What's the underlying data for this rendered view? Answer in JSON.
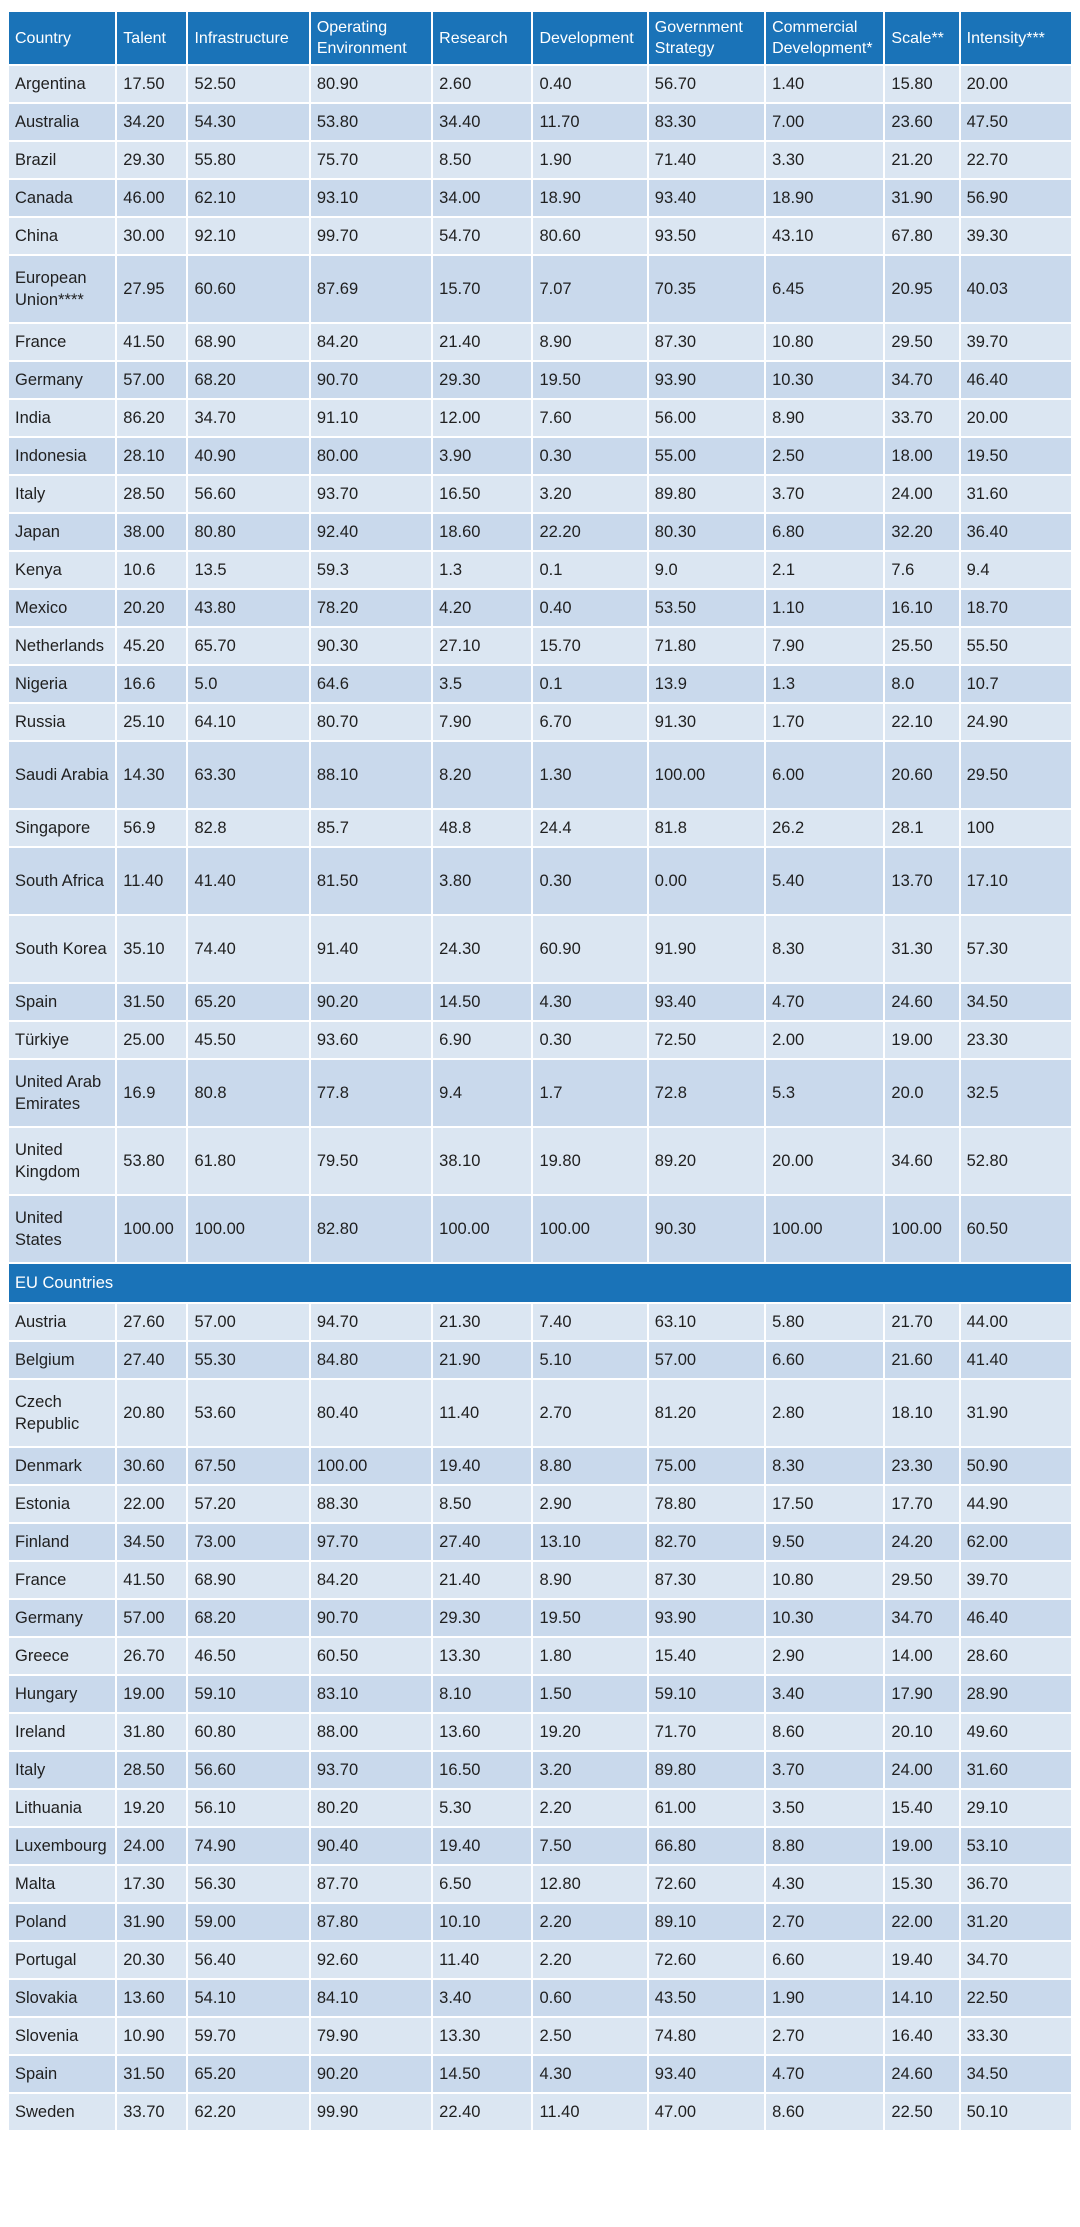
{
  "columns": [
    "Country",
    "Talent",
    "Infrastructure",
    "Operating Environment",
    "Research",
    "Development",
    "Government Strategy",
    "Commercial Development*",
    "Scale**",
    "Intensity***"
  ],
  "countries": [
    {
      "name": "Argentina",
      "values": [
        "17.50",
        "52.50",
        "80.90",
        "2.60",
        "0.40",
        "56.70",
        "1.40",
        "15.80",
        "20.00"
      ]
    },
    {
      "name": "Australia",
      "values": [
        "34.20",
        "54.30",
        "53.80",
        "34.40",
        "11.70",
        "83.30",
        "7.00",
        "23.60",
        "47.50"
      ]
    },
    {
      "name": "Brazil",
      "values": [
        "29.30",
        "55.80",
        "75.70",
        "8.50",
        "1.90",
        "71.40",
        "3.30",
        "21.20",
        "22.70"
      ]
    },
    {
      "name": "Canada",
      "values": [
        "46.00",
        "62.10",
        "93.10",
        "34.00",
        "18.90",
        "93.40",
        "18.90",
        "31.90",
        "56.90"
      ]
    },
    {
      "name": "China",
      "values": [
        "30.00",
        "92.10",
        "99.70",
        "54.70",
        "80.60",
        "93.50",
        "43.10",
        "67.80",
        "39.30"
      ]
    },
    {
      "name": "European Union****",
      "values": [
        "27.95",
        "60.60",
        "87.69",
        "15.70",
        "7.07",
        "70.35",
        "6.45",
        "20.95",
        "40.03"
      ]
    },
    {
      "name": "France",
      "values": [
        "41.50",
        "68.90",
        "84.20",
        "21.40",
        "8.90",
        "87.30",
        "10.80",
        "29.50",
        "39.70"
      ]
    },
    {
      "name": "Germany",
      "values": [
        "57.00",
        "68.20",
        "90.70",
        "29.30",
        "19.50",
        "93.90",
        "10.30",
        "34.70",
        "46.40"
      ]
    },
    {
      "name": "India",
      "values": [
        "86.20",
        "34.70",
        "91.10",
        "12.00",
        "7.60",
        "56.00",
        "8.90",
        "33.70",
        "20.00"
      ]
    },
    {
      "name": "Indonesia",
      "values": [
        "28.10",
        "40.90",
        "80.00",
        "3.90",
        "0.30",
        "55.00",
        "2.50",
        "18.00",
        "19.50"
      ]
    },
    {
      "name": "Italy",
      "values": [
        "28.50",
        "56.60",
        "93.70",
        "16.50",
        "3.20",
        "89.80",
        "3.70",
        "24.00",
        "31.60"
      ]
    },
    {
      "name": "Japan",
      "values": [
        "38.00",
        "80.80",
        "92.40",
        "18.60",
        "22.20",
        "80.30",
        "6.80",
        "32.20",
        "36.40"
      ]
    },
    {
      "name": "Kenya",
      "values": [
        "10.6",
        "13.5",
        "59.3",
        "1.3",
        "0.1",
        "9.0",
        "2.1",
        "7.6",
        "9.4"
      ]
    },
    {
      "name": "Mexico",
      "values": [
        "20.20",
        "43.80",
        "78.20",
        "4.20",
        "0.40",
        "53.50",
        "1.10",
        "16.10",
        "18.70"
      ]
    },
    {
      "name": "Netherlands",
      "values": [
        "45.20",
        "65.70",
        "90.30",
        "27.10",
        "15.70",
        "71.80",
        "7.90",
        "25.50",
        "55.50"
      ]
    },
    {
      "name": "Nigeria",
      "values": [
        "16.6",
        "5.0",
        "64.6",
        "3.5",
        "0.1",
        "13.9",
        "1.3",
        "8.0",
        "10.7"
      ]
    },
    {
      "name": "Russia",
      "values": [
        "25.10",
        "64.10",
        "80.70",
        "7.90",
        "6.70",
        "91.30",
        "1.70",
        "22.10",
        "24.90"
      ]
    },
    {
      "name": "Saudi Arabia",
      "values": [
        "14.30",
        "63.30",
        "88.10",
        "8.20",
        "1.30",
        "100.00",
        "6.00",
        "20.60",
        "29.50"
      ]
    },
    {
      "name": "Singapore",
      "values": [
        "56.9",
        "82.8",
        "85.7",
        "48.8",
        "24.4",
        "81.8",
        "26.2",
        "28.1",
        "100"
      ]
    },
    {
      "name": "South Africa",
      "values": [
        "11.40",
        "41.40",
        "81.50",
        "3.80",
        "0.30",
        "0.00",
        "5.40",
        "13.70",
        "17.10"
      ]
    },
    {
      "name": "South Korea",
      "values": [
        "35.10",
        "74.40",
        "91.40",
        "24.30",
        "60.90",
        "91.90",
        "8.30",
        "31.30",
        "57.30"
      ]
    },
    {
      "name": "Spain",
      "values": [
        "31.50",
        "65.20",
        "90.20",
        "14.50",
        "4.30",
        "93.40",
        "4.70",
        "24.60",
        "34.50"
      ]
    },
    {
      "name": "Türkiye",
      "values": [
        "25.00",
        "45.50",
        "93.60",
        "6.90",
        "0.30",
        "72.50",
        "2.00",
        "19.00",
        "23.30"
      ]
    },
    {
      "name": "United Arab Emirates",
      "values": [
        "16.9",
        "80.8",
        "77.8",
        "9.4",
        "1.7",
        "72.8",
        "5.3",
        "20.0",
        "32.5"
      ]
    },
    {
      "name": "United Kingdom",
      "values": [
        "53.80",
        "61.80",
        "79.50",
        "38.10",
        "19.80",
        "89.20",
        "20.00",
        "34.60",
        "52.80"
      ]
    },
    {
      "name": "United States",
      "values": [
        "100.00",
        "100.00",
        "82.80",
        "100.00",
        "100.00",
        "90.30",
        "100.00",
        "100.00",
        "60.50"
      ]
    }
  ],
  "eu_section_label": "EU Countries",
  "eu_countries": [
    {
      "name": "Austria",
      "values": [
        "27.60",
        "57.00",
        "94.70",
        "21.30",
        "7.40",
        "63.10",
        "5.80",
        "21.70",
        "44.00"
      ]
    },
    {
      "name": "Belgium",
      "values": [
        "27.40",
        "55.30",
        "84.80",
        "21.90",
        "5.10",
        "57.00",
        "6.60",
        "21.60",
        "41.40"
      ]
    },
    {
      "name": "Czech Republic",
      "values": [
        "20.80",
        "53.60",
        "80.40",
        "11.40",
        "2.70",
        "81.20",
        "2.80",
        "18.10",
        "31.90"
      ]
    },
    {
      "name": "Denmark",
      "values": [
        "30.60",
        "67.50",
        "100.00",
        "19.40",
        "8.80",
        "75.00",
        "8.30",
        "23.30",
        "50.90"
      ]
    },
    {
      "name": "Estonia",
      "values": [
        "22.00",
        "57.20",
        "88.30",
        "8.50",
        "2.90",
        "78.80",
        "17.50",
        "17.70",
        "44.90"
      ]
    },
    {
      "name": "Finland",
      "values": [
        "34.50",
        "73.00",
        "97.70",
        "27.40",
        "13.10",
        "82.70",
        "9.50",
        "24.20",
        "62.00"
      ]
    },
    {
      "name": "France",
      "values": [
        "41.50",
        "68.90",
        "84.20",
        "21.40",
        "8.90",
        "87.30",
        "10.80",
        "29.50",
        "39.70"
      ]
    },
    {
      "name": "Germany",
      "values": [
        "57.00",
        "68.20",
        "90.70",
        "29.30",
        "19.50",
        "93.90",
        "10.30",
        "34.70",
        "46.40"
      ]
    },
    {
      "name": "Greece",
      "values": [
        "26.70",
        "46.50",
        "60.50",
        "13.30",
        "1.80",
        "15.40",
        "2.90",
        "14.00",
        "28.60"
      ]
    },
    {
      "name": "Hungary",
      "values": [
        "19.00",
        "59.10",
        "83.10",
        "8.10",
        "1.50",
        "59.10",
        "3.40",
        "17.90",
        "28.90"
      ]
    },
    {
      "name": "Ireland",
      "values": [
        "31.80",
        "60.80",
        "88.00",
        "13.60",
        "19.20",
        "71.70",
        "8.60",
        "20.10",
        "49.60"
      ]
    },
    {
      "name": "Italy",
      "values": [
        "28.50",
        "56.60",
        "93.70",
        "16.50",
        "3.20",
        "89.80",
        "3.70",
        "24.00",
        "31.60"
      ]
    },
    {
      "name": "Lithuania",
      "values": [
        "19.20",
        "56.10",
        "80.20",
        "5.30",
        "2.20",
        "61.00",
        "3.50",
        "15.40",
        "29.10"
      ]
    },
    {
      "name": "Luxembourg",
      "values": [
        "24.00",
        "74.90",
        "90.40",
        "19.40",
        "7.50",
        "66.80",
        "8.80",
        "19.00",
        "53.10"
      ]
    },
    {
      "name": "Malta",
      "values": [
        "17.30",
        "56.30",
        "87.70",
        "6.50",
        "12.80",
        "72.60",
        "4.30",
        "15.30",
        "36.70"
      ]
    },
    {
      "name": "Poland",
      "values": [
        "31.90",
        "59.00",
        "87.80",
        "10.10",
        "2.20",
        "89.10",
        "2.70",
        "22.00",
        "31.20"
      ]
    },
    {
      "name": "Portugal",
      "values": [
        "20.30",
        "56.40",
        "92.60",
        "11.40",
        "2.20",
        "72.60",
        "6.60",
        "19.40",
        "34.70"
      ]
    },
    {
      "name": "Slovakia",
      "values": [
        "13.60",
        "54.10",
        "84.10",
        "3.40",
        "0.60",
        "43.50",
        "1.90",
        "14.10",
        "22.50"
      ]
    },
    {
      "name": "Slovenia",
      "values": [
        "10.90",
        "59.70",
        "79.90",
        "13.30",
        "2.50",
        "74.80",
        "2.70",
        "16.40",
        "33.30"
      ]
    },
    {
      "name": "Spain",
      "values": [
        "31.50",
        "65.20",
        "90.20",
        "14.50",
        "4.30",
        "93.40",
        "4.70",
        "24.60",
        "34.50"
      ]
    },
    {
      "name": "Sweden",
      "values": [
        "33.70",
        "62.20",
        "99.90",
        "22.40",
        "11.40",
        "47.00",
        "8.60",
        "22.50",
        "50.10"
      ]
    }
  ],
  "colors": {
    "header": "#1a73b8",
    "row_light": "#dbe6f2",
    "row_dark": "#c9d9ec"
  }
}
